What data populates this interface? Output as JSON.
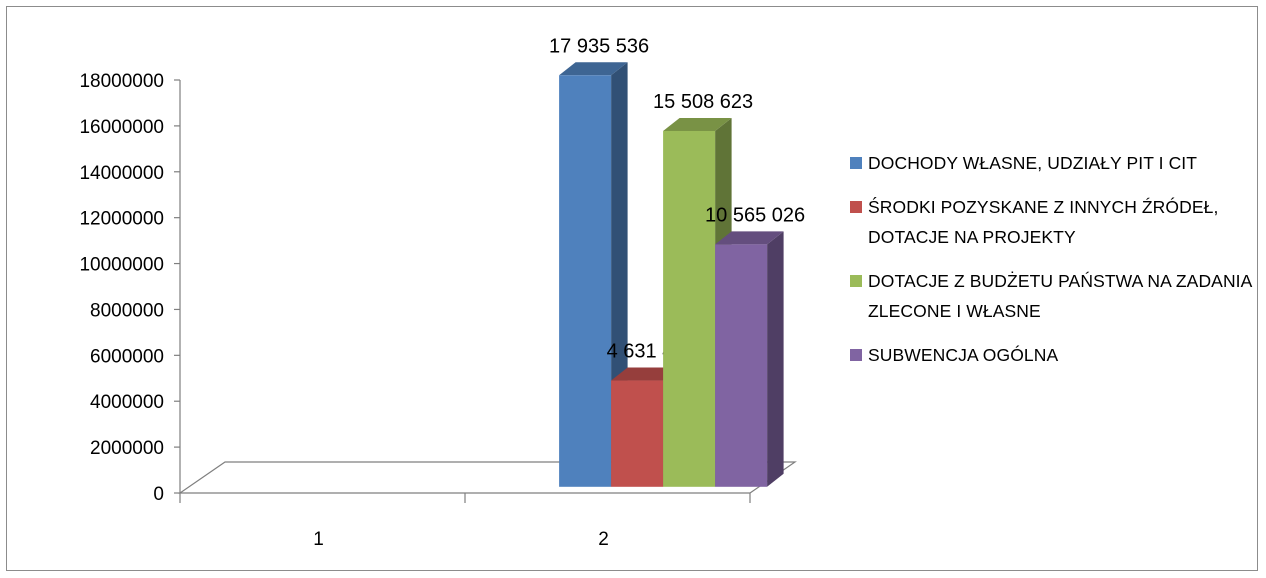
{
  "chart_data": {
    "type": "bar",
    "categories": [
      "1",
      "2"
    ],
    "series": [
      {
        "name": "DOCHODY WŁASNE, UDZIAŁY PIT I CIT",
        "values": [
          0,
          17935536
        ],
        "labels": [
          "",
          "17 935 536"
        ],
        "color": "#4f81bd"
      },
      {
        "name": "ŚRODKI POZYSKANE Z INNYCH ŹRÓDEŁ, DOTACJE NA PROJEKTY",
        "values": [
          0,
          4631483
        ],
        "labels": [
          "",
          "4 631 483"
        ],
        "color": "#c0504d"
      },
      {
        "name": "DOTACJE Z BUDŻETU PAŃSTWA NA ZADANIA ZLECONE I WŁASNE",
        "values": [
          0,
          15508623
        ],
        "labels": [
          "",
          "15 508 623"
        ],
        "color": "#9bbb59"
      },
      {
        "name": "SUBWENCJA OGÓLNA",
        "values": [
          0,
          10565026
        ],
        "labels": [
          "",
          "10 565 026"
        ],
        "color": "#8064a2"
      }
    ],
    "ylim": [
      0,
      18000000
    ],
    "yticks": [
      "0",
      "2000000",
      "4000000",
      "6000000",
      "8000000",
      "10000000",
      "12000000",
      "14000000",
      "16000000",
      "18000000"
    ],
    "title": "",
    "xlabel": "",
    "ylabel": "",
    "legend_position": "right",
    "grid": false,
    "style": "3d-column"
  }
}
